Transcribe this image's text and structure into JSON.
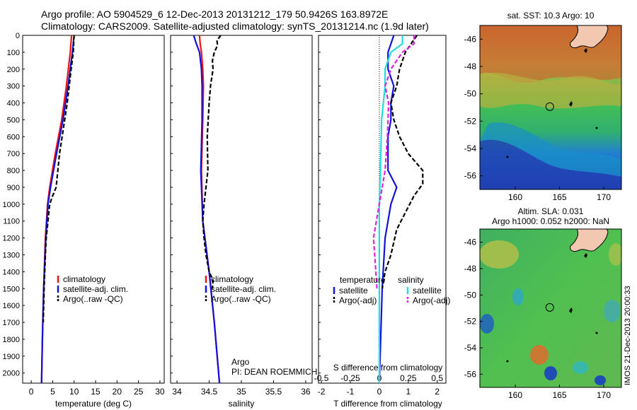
{
  "header": {
    "line1": "Argo profile: AO 5904529_6 12-Dec-2013 20131212_179 50.9426S 163.8972E",
    "line2": "Climatology: CARS2009. Satellite-adjusted climatology: synTS_20131214.nc (1.9d later)"
  },
  "depth_ticks": [
    0,
    100,
    200,
    300,
    400,
    500,
    600,
    700,
    800,
    900,
    1000,
    1100,
    1200,
    1300,
    1400,
    1500,
    1600,
    1700,
    1800,
    1900,
    2000
  ],
  "credit": "IMOS 21-Dec-2013 20:00:33",
  "colors": {
    "climatology": "#ee1111",
    "satellite": "#1111dd",
    "argo": "#000000",
    "salinity_satellite": "#22dddd",
    "salinity_argo": "#dd22dd"
  },
  "chart_data": [
    {
      "type": "line",
      "xlabel": "temperature (deg C)",
      "ylabel": "",
      "xlim": [
        -2,
        31
      ],
      "ylim": [
        2060,
        0
      ],
      "xticks": [
        0,
        5,
        10,
        15,
        20,
        25,
        30
      ],
      "legend_position": "lower-right",
      "series": [
        {
          "name": "climatology",
          "style": "solid",
          "depth": [
            0,
            100,
            300,
            500,
            700,
            900,
            1000,
            1200,
            1500,
            1800,
            2060
          ],
          "values": [
            9.4,
            9.1,
            8.2,
            7.1,
            5.6,
            4.3,
            3.8,
            3.3,
            2.9,
            2.6,
            2.4
          ]
        },
        {
          "name": "satellite-adj. clim.",
          "style": "solid",
          "depth": [
            0,
            100,
            300,
            500,
            700,
            900,
            1000,
            1200,
            1500,
            1800,
            2060
          ],
          "values": [
            10.0,
            9.6,
            8.6,
            7.4,
            5.9,
            4.5,
            3.9,
            3.4,
            2.9,
            2.6,
            2.4
          ]
        },
        {
          "name": "Argo(..raw -QC)",
          "style": "dashed",
          "depth": [
            0,
            50,
            100,
            200,
            400,
            600,
            700,
            800,
            900,
            950,
            1000,
            1100,
            1200,
            1300,
            1500,
            1700
          ],
          "values": [
            10.0,
            9.9,
            9.8,
            9.3,
            8.4,
            7.2,
            6.6,
            6.2,
            5.8,
            5.0,
            4.3,
            3.9,
            3.5,
            3.3,
            3.0,
            2.8
          ]
        }
      ]
    },
    {
      "type": "line",
      "xlabel": "salinity",
      "ylabel": "",
      "xlim": [
        33.9,
        36.1
      ],
      "ylim": [
        2060,
        0
      ],
      "xticks": [
        34,
        34.5,
        35,
        35.5,
        36
      ],
      "legend_position": "lower-right",
      "annotation": {
        "line1": "Argo",
        "line2": "PI: DEAN ROEMMICH"
      },
      "series": [
        {
          "name": "climatology",
          "style": "solid",
          "depth": [
            0,
            50,
            100,
            200,
            300,
            500,
            800,
            1100,
            1400,
            1700,
            2060
          ],
          "values": [
            34.35,
            34.36,
            34.38,
            34.4,
            34.41,
            34.4,
            34.38,
            34.4,
            34.5,
            34.58,
            34.66
          ]
        },
        {
          "name": "satellite-adj. clim.",
          "style": "solid",
          "depth": [
            0,
            50,
            100,
            200,
            300,
            500,
            800,
            1100,
            1400,
            1700,
            2060
          ],
          "values": [
            34.26,
            34.3,
            34.35,
            34.38,
            34.39,
            34.39,
            34.37,
            34.4,
            34.5,
            34.58,
            34.66
          ]
        },
        {
          "name": "Argo(..raw -QC)",
          "style": "dashed",
          "depth": [
            0,
            30,
            60,
            100,
            150,
            200,
            300,
            400,
            600,
            800,
            900,
            1000,
            1100,
            1200,
            1300,
            1400,
            1450,
            1500
          ],
          "values": [
            34.68,
            34.62,
            34.63,
            34.58,
            34.55,
            34.56,
            34.52,
            34.5,
            34.47,
            34.48,
            34.45,
            34.42,
            34.4,
            34.42,
            34.45,
            34.5,
            34.56,
            34.55
          ]
        }
      ]
    },
    {
      "type": "line",
      "xlabel": "T difference from climatology",
      "ylabel": "",
      "xlim": [
        -2.1,
        2.3
      ],
      "ylim": [
        2060,
        0
      ],
      "xticks": [
        -2,
        -1,
        0,
        1,
        2
      ],
      "secondary_xlabel": "S difference from climatology",
      "secondary_xticks": [
        "-0.5",
        "-0.25",
        "0",
        "0.25",
        "0.5"
      ],
      "legend_position": "lower-center",
      "legend_groups": {
        "temperature": "temperature",
        "salinity": "salinity"
      },
      "series": [
        {
          "name": "satellite",
          "group": "temperature",
          "style": "solid",
          "depth": [
            0,
            100,
            200,
            300,
            400,
            500,
            600,
            800,
            900,
            1000,
            1200,
            1500,
            2060
          ],
          "values": [
            0.5,
            0.3,
            0.3,
            0.5,
            0.4,
            0.4,
            0.3,
            0.3,
            0.6,
            0.4,
            0.2,
            0.1,
            0.0
          ]
        },
        {
          "name": "Argo(-adj)",
          "group": "temperature",
          "style": "dashed",
          "depth": [
            0,
            50,
            100,
            200,
            300,
            400,
            500,
            600,
            700,
            800,
            880,
            950,
            1050,
            1150,
            1300,
            1400,
            1500
          ],
          "values": [
            1.3,
            1.1,
            0.9,
            0.7,
            0.6,
            0.4,
            0.5,
            0.7,
            1.0,
            1.5,
            1.5,
            1.2,
            0.9,
            0.6,
            0.4,
            0.2,
            0.1
          ]
        },
        {
          "name": "satellite",
          "group": "salinity",
          "style": "solid",
          "depth": [
            0,
            50,
            100,
            200,
            300,
            500,
            800,
            1000,
            1500,
            2060
          ],
          "values": [
            0.2,
            0.2,
            0.1,
            0.05,
            0.05,
            0.02,
            0.01,
            0.0,
            0.0,
            0.0
          ]
        },
        {
          "name": "Argo(-adj)",
          "group": "salinity",
          "style": "dashed",
          "depth": [
            0,
            50,
            100,
            200,
            300,
            400,
            600,
            800,
            1000,
            1200,
            1300,
            1400,
            1500
          ],
          "values": [
            0.3,
            0.3,
            0.2,
            0.1,
            0.05,
            0.08,
            0.07,
            0.05,
            0.0,
            -0.05,
            -0.04,
            -0.03,
            -0.02
          ]
        }
      ]
    },
    {
      "type": "heatmap",
      "title": "sat. SST: 10.3 Argo: 10",
      "xlim": [
        156,
        172
      ],
      "ylim": [
        -57,
        -45
      ],
      "xticks": [
        160,
        165,
        170
      ],
      "yticks": [
        -46,
        -48,
        -50,
        -52,
        -54,
        -56
      ],
      "marker": {
        "lon": 163.9,
        "lat": -50.94
      }
    },
    {
      "type": "heatmap",
      "title": "Altim. SLA: 0.031",
      "subtitle": "Argo h1000: 0.052 h2000: NaN",
      "xlim": [
        156,
        172
      ],
      "ylim": [
        -57,
        -45
      ],
      "xticks": [
        160,
        165,
        170
      ],
      "yticks": [
        -46,
        -48,
        -50,
        -52,
        -54,
        -56
      ],
      "marker": {
        "lon": 163.9,
        "lat": -50.94
      }
    }
  ]
}
